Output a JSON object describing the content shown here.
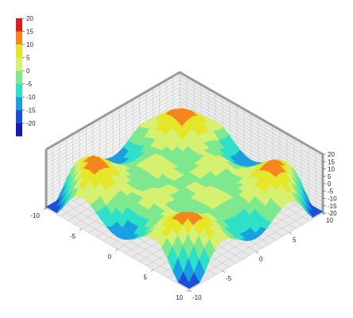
{
  "chart_data": {
    "type": "surface3d",
    "title": "",
    "x_ticks": [
      -10,
      -5,
      0,
      5,
      10
    ],
    "y_ticks": [
      -10,
      -5,
      0,
      5,
      10
    ],
    "z_ticks": [
      -20,
      -15,
      -10,
      -5,
      0,
      5,
      10,
      15,
      20
    ],
    "xlim": [
      -10,
      10
    ],
    "ylim": [
      -10,
      10
    ],
    "zlim": [
      -20,
      20
    ],
    "color_scale": {
      "levels": [
        20,
        15,
        10,
        5,
        0,
        -5,
        -10,
        -15,
        -20
      ],
      "colors": [
        "#d71f1f",
        "#f5861f",
        "#e6e629",
        "#d6f070",
        "#7ee88f",
        "#2fe0c8",
        "#1aa0e0",
        "#1c4fd8",
        "#1a1aa8"
      ]
    },
    "surface": {
      "description": "symmetric radial ripple: peaks near corners (~18), deep troughs near edges (~-18), flat ~0 center ring",
      "grid_min": -10,
      "grid_max": 10,
      "grid_n": 26
    },
    "grid": true,
    "legend_position": "top-left"
  }
}
